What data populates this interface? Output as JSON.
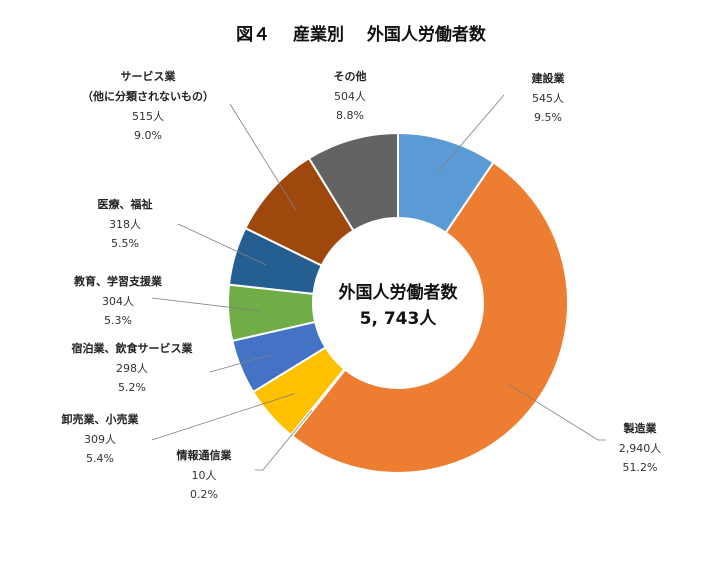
{
  "chart_data": {
    "type": "pie",
    "variant": "donut",
    "title": "図４　 産業別　 外国人労働者数",
    "center_label": "外国人労働者数",
    "center_value": "5, 743人",
    "unit": "人",
    "slices": [
      {
        "name": "建設業",
        "value": 545,
        "value_label": "545人",
        "percent": 9.5,
        "percent_label": "9.5%",
        "color": "#5B9BD5"
      },
      {
        "name": "製造業",
        "value": 2940,
        "value_label": "2,940人",
        "percent": 51.2,
        "percent_label": "51.2%",
        "color": "#ED7D31"
      },
      {
        "name": "情報通信業",
        "value": 10,
        "value_label": "10人",
        "percent": 0.2,
        "percent_label": "0.2%",
        "color": "#A5A5A5"
      },
      {
        "name": "卸売業、小売業",
        "value": 309,
        "value_label": "309人",
        "percent": 5.4,
        "percent_label": "5.4%",
        "color": "#FFC000"
      },
      {
        "name": "宿泊業、飲食サービス業",
        "value": 298,
        "value_label": "298人",
        "percent": 5.2,
        "percent_label": "5.2%",
        "color": "#4472C4"
      },
      {
        "name": "教育、学習支援業",
        "value": 304,
        "value_label": "304人",
        "percent": 5.3,
        "percent_label": "5.3%",
        "color": "#70AD47"
      },
      {
        "name": "医療、福祉",
        "value": 318,
        "value_label": "318人",
        "percent": 5.5,
        "percent_label": "5.5%",
        "color": "#255E91"
      },
      {
        "name": "サービス業\n（他に分類されないもの）",
        "value": 515,
        "value_label": "515人",
        "percent": 9.0,
        "percent_label": "9.0%",
        "color": "#9E480E"
      },
      {
        "name": "その他",
        "value": 504,
        "value_label": "504人",
        "percent": 8.8,
        "percent_label": "8.8%",
        "color": "#636363"
      }
    ]
  }
}
